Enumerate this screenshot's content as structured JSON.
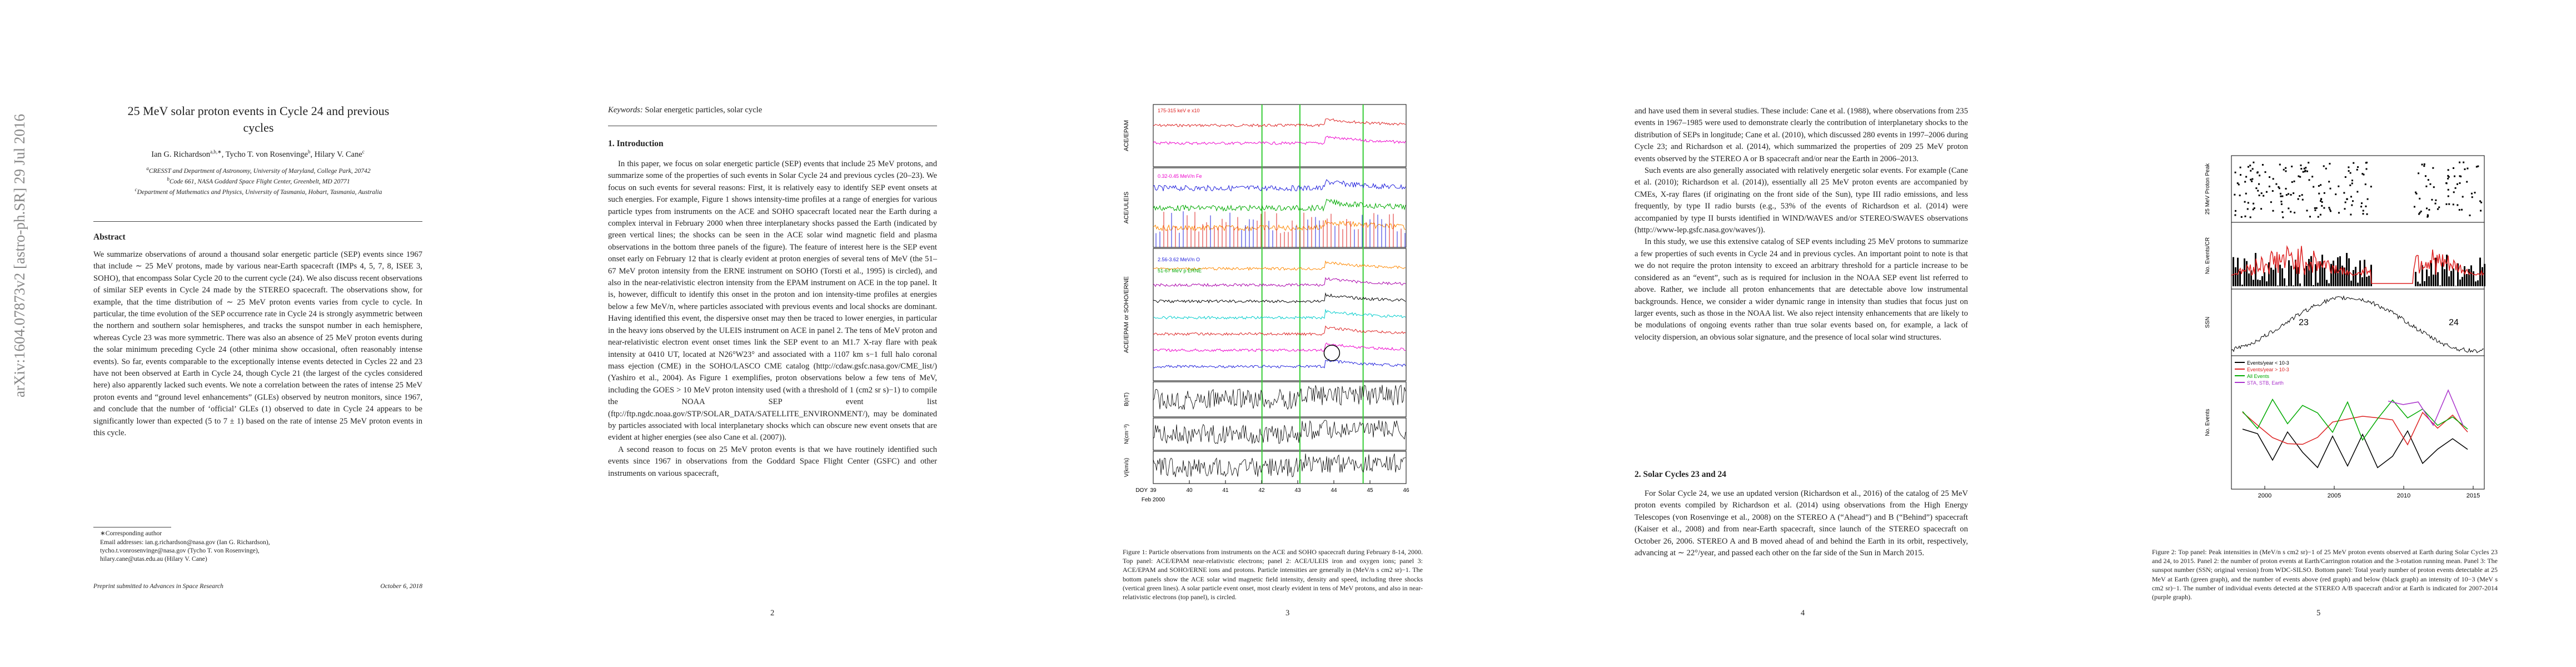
{
  "sidebar": "arXiv:1604.07873v2  [astro-ph.SR]  29 Jul 2016",
  "page1": {
    "title": "25 MeV solar proton events in Cycle 24 and previous cycles",
    "authors": [
      {
        "name": "Ian G. Richardson",
        "sup": "a,b,∗"
      },
      {
        "name": "Tycho T. von Rosenvinge",
        "sup": "b"
      },
      {
        "name": "Hilary V. Cane",
        "sup": "c"
      }
    ],
    "affiliations": [
      {
        "sup": "a",
        "text": "CRESST and Department of Astronomy, University of Maryland, College Park, 20742"
      },
      {
        "sup": "b",
        "text": "Code 661, NASA Goddard Space Flight Center, Greenbelt, MD 20771"
      },
      {
        "sup": "c",
        "text": "Department of Mathematics and Physics, University of Tasmania, Hobart, Tasmania, Australia"
      }
    ],
    "abstract_heading": "Abstract",
    "abstract": "We summarize observations of around a thousand solar energetic particle (SEP) events since 1967 that include ∼ 25 MeV protons, made by various near-Earth spacecraft (IMPs 4, 5, 7, 8, ISEE 3, SOHO), that encompass Solar Cycle 20 to the current cycle (24). We also discuss recent observations of similar SEP events in Cycle 24 made by the STEREO spacecraft. The observations show, for example, that the time distribution of ∼ 25 MeV proton events varies from cycle to cycle. In particular, the time evolution of the SEP occurrence rate in Cycle 24 is strongly asymmetric between the northern and southern solar hemispheres, and tracks the sunspot number in each hemisphere, whereas Cycle 23 was more symmetric. There was also an absence of 25 MeV proton events during the solar minimum preceding Cycle 24 (other minima show occasional, often reasonably intense events). So far, events comparable to the exceptionally intense events detected in Cycles 22 and 23 have not been observed at Earth in Cycle 24, though Cycle 21 (the largest of the cycles considered here) also apparently lacked such events. We note a correlation between the rates of intense 25 MeV proton events and “ground level enhancements” (GLEs) observed by neutron monitors, since 1967, and conclude that the number of ‘official’ GLEs (1) observed to date in Cycle 24 appears to be significantly lower than expected (5 to 7 ± 1) based on the rate of intense 25 MeV proton events in this cycle.",
    "footnotes": [
      "∗Corresponding author",
      "Email addresses: ian.g.richardson@nasa.gov (Ian G. Richardson), tycho.t.vonrosenvinge@nasa.gov (Tycho T. von Rosenvinge), hilary.cane@utas.edu.au (Hilary V. Cane)"
    ],
    "footer_left": "Preprint submitted to Advances in Space Research",
    "footer_right": "October 6, 2018"
  },
  "page2": {
    "keywords_label": "Keywords:",
    "keywords": "Solar energetic particles, solar cycle",
    "section": "1. Introduction",
    "paragraphs": [
      "In this paper, we focus on solar energetic particle (SEP) events that include 25 MeV protons, and summarize some of the properties of such events in Solar Cycle 24 and previous cycles (20–23). We focus on such events for several reasons: First, it is relatively easy to identify SEP event onsets at such energies. For example, Figure 1 shows intensity-time profiles at a range of energies for various particle types from instruments on the ACE and SOHO spacecraft located near the Earth during a complex interval in February 2000 when three interplanetary shocks passed the Earth (indicated by green vertical lines; the shocks can be seen in the ACE solar wind magnetic field and plasma observations in the bottom three panels of the figure). The feature of interest here is the SEP event onset early on February 12 that is clearly evident at proton energies of several tens of MeV (the 51–67 MeV proton intensity from the ERNE instrument on SOHO (Torsti et al., 1995) is circled), and also in the near-relativistic electron intensity from the EPAM instrument on ACE in the top panel. It is, however, difficult to identify this onset in the proton and ion intensity-time profiles at energies below a few MeV/n, where particles associated with previous events and local shocks are dominant. Having identified this event, the dispersive onset may then be traced to lower energies, in particular in the heavy ions observed by the ULEIS instrument on ACE in panel 2. The tens of MeV proton and near-relativistic electron event onset times link the SEP event to an M1.7 X-ray flare with peak intensity at 0410 UT, located at N26°W23° and associated with a 1107 km s−1 full halo coronal mass ejection (CME) in the SOHO/LASCO CME catalog (http://cdaw.gsfc.nasa.gov/CME_list/) (Yashiro et al., 2004). As Figure 1 exemplifies, proton observations below a few tens of MeV, including the GOES > 10 MeV proton intensity used (with a threshold of 1 (cm2 sr s)−1) to compile the NOAA SEP event list (ftp://ftp.ngdc.noaa.gov/STP/SOLAR_DATA/SATELLITE_ENVIRONMENT/), may be dominated by particles associated with local interplanetary shocks which can obscure new event onsets that are evident at higher energies (see also Cane et al. (2007)).",
      "A second reason to focus on 25 MeV proton events is that we have routinely identified such events since 1967 in observations from the Goddard Space Flight Center (GSFC) and other instruments on various spacecraft,"
    ],
    "page_number": "2"
  },
  "page3": {
    "figure": {
      "panel_labels": [
        "ACE/EPAM",
        "ACE/ULEIS",
        "ACE/EPAM or SOHO/ERNE",
        "B(nT)",
        "N(cm⁻³)",
        "V(km/s)"
      ],
      "legend": [
        "175-315 keV e x10",
        "0.32-0.45 MeV/n Fe",
        "2.56-3.62 MeV/n O",
        "51-67 MeV p ERNE"
      ],
      "x_ticks": [
        "39",
        "40",
        "41",
        "42",
        "43",
        "44",
        "45",
        "46"
      ],
      "x_label": "DOY",
      "x_sublabel": "Feb 2000"
    },
    "caption": "Figure 1: Particle observations from instruments on the ACE and SOHO spacecraft during February 8-14, 2000. Top panel: ACE/EPAM near-relativistic electrons; panel 2: ACE/ULEIS iron and oxygen ions; panel 3: ACE/EPAM and SOHO/ERNE ions and protons. Particle intensities are generally in (MeV/n s cm2 sr)−1. The bottom panels show the ACE solar wind magnetic field intensity, density and speed, including three shocks (vertical green lines). A solar particle event onset, most clearly evident in tens of MeV protons, and also in near-relativistic electrons (top panel), is circled.",
    "page_number": "3"
  },
  "page4": {
    "paragraphs": [
      "and have used them in several studies. These include: Cane et al. (1988), where observations from 235 events in 1967–1985 were used to demonstrate clearly the contribution of interplanetary shocks to the distribution of SEPs in longitude; Cane et al. (2010), which discussed 280 events in 1997–2006 during Cycle 23; and Richardson et al. (2014), which summarized the properties of 209 25 MeV proton events observed by the STEREO A or B spacecraft and/or near the Earth in 2006–2013.",
      "Such events are also generally associated with relatively energetic solar events. For example (Cane et al. (2010); Richardson et al. (2014)), essentially all 25 MeV proton events are accompanied by CMEs, X-ray flares (if originating on the front side of the Sun), type III radio emissions, and less frequently, by type II radio bursts (e.g., 53% of the events of Richardson et al. (2014) were accompanied by type II bursts identified in WIND/WAVES and/or STEREO/SWAVES observations (http://www-lep.gsfc.nasa.gov/waves/)).",
      "In this study, we use this extensive catalog of SEP events including 25 MeV protons to summarize a few properties of such events in Cycle 24 and in previous cycles. An important point to note is that we do not require the proton intensity to exceed an arbitrary threshold for a particle increase to be considered as an “event”, such as is required for inclusion in the NOAA SEP event list referred to above. Rather, we include all proton enhancements that are detectable above low instrumental backgrounds. Hence, we consider a wider dynamic range in intensity than studies that focus just on larger events, such as those in the NOAA list. We also reject intensity enhancements that are likely to be modulations of ongoing events rather than true solar events based on, for example, a lack of velocity dispersion, an obvious solar signature, and the presence of local solar wind structures."
    ],
    "section": "2. Solar Cycles 23 and 24",
    "section_paragraph": "For Solar Cycle 24, we use an updated version (Richardson et al., 2016) of the catalog of 25 MeV proton events compiled by Richardson et al. (2014) using observations from the High Energy Telescopes (von Rosenvinge et al., 2008) on the STEREO A (“Ahead”) and B (“Behind”) spacecraft (Kaiser et al., 2008) and from near-Earth spacecraft, since launch of the STEREO spacecraft on October 26, 2006. STEREO A and B moved ahead of and behind the Earth in its orbit, respectively, advancing at ∼ 22°/year, and passed each other on the far side of the Sun in March 2015.",
    "page_number": "4"
  },
  "page5": {
    "figure": {
      "panel_labels": [
        "25 MeV Proton Peak",
        "No. Events/CR",
        "SSN",
        "No. Events"
      ],
      "x_ticks": [
        "2000",
        "2005",
        "2010",
        "2015"
      ],
      "cycle_labels": [
        "23",
        "24"
      ],
      "legend": [
        "Events/year < 10-3",
        "Events/year > 10-3",
        "All Events",
        "STA, STB, Earth"
      ]
    },
    "caption": "Figure 2: Top panel: Peak intensities in (MeV/n s cm2 sr)−1 of 25 MeV proton events observed at Earth during Solar Cycles 23 and 24, to 2015. Panel 2: the number of proton events at Earth/Carrington rotation and the 3-rotation running mean. Panel 3: The sunspot number (SSN; original version) from WDC-SILSO. Bottom panel: Total yearly number of proton events detectable at 25 MeV at Earth (green graph), and the number of events above (red graph) and below (black graph) an intensity of 10−3 (MeV s cm2 sr)−1. The number of individual events detected at the STEREO A/B spacecraft and/or at Earth is indicated for 2007-2014 (purple graph).",
    "page_number": "5"
  }
}
